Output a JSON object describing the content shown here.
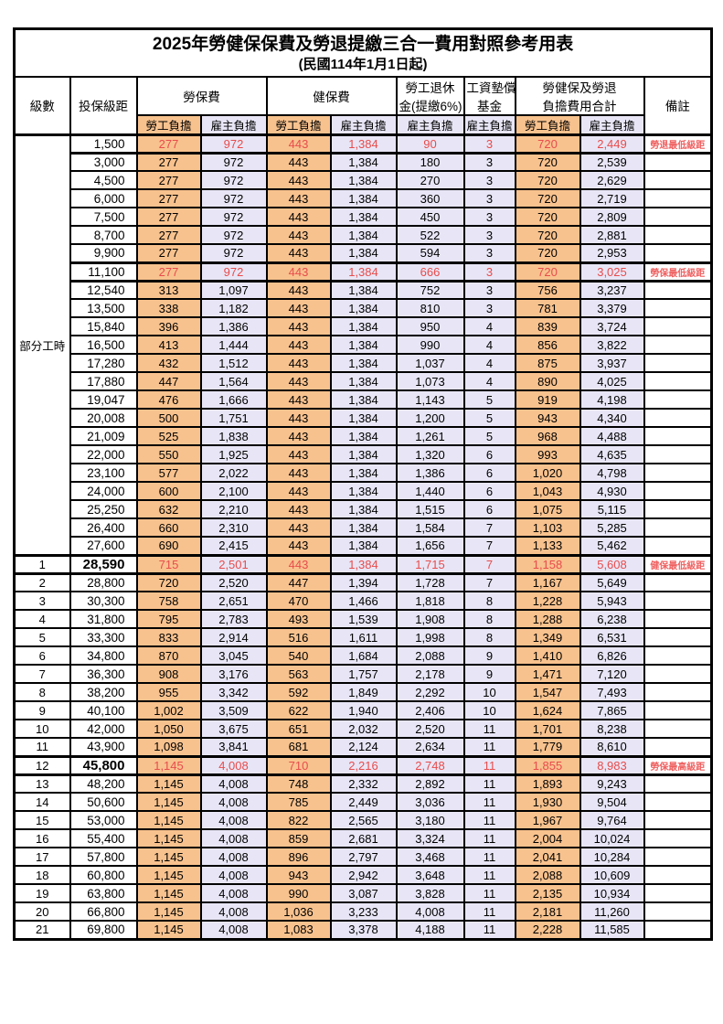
{
  "title": "2025年勞健保保費及勞退提繳三合一費用對照參考用表",
  "subtitle": "(民國114年1月1日起)",
  "colors": {
    "employee_col_bg": "#F8C28E",
    "employer_col_bg": "#E8E6F6",
    "highlight_text": "#E84C4C",
    "remark_text": "#EF6161",
    "border": "#000000",
    "page_bg": "#FFFFFF"
  },
  "table": {
    "header": {
      "level": "級數",
      "bracket": "投保級距",
      "labor_ins": "勞保費",
      "health_ins": "健保費",
      "pension_line1": "勞工退休",
      "pension_line2": "金(提繳6%)",
      "wage_fund_line1": "工資墊償",
      "wage_fund_line2": "基金",
      "total_line1": "勞健保及勞退",
      "total_line2": "負擔費用合計",
      "employee": "勞工負擔",
      "employer": "雇主負擔",
      "remark": "備註"
    },
    "part_time": {
      "label": "部分工時",
      "row_count": 23
    },
    "rows": [
      {
        "level": null,
        "bracket": "1,500",
        "values": [
          "277",
          "972",
          "443",
          "1,384",
          "90",
          "3",
          "720",
          "2,449"
        ],
        "remark": "勞退最低級距",
        "red": true,
        "bold": false
      },
      {
        "level": null,
        "bracket": "3,000",
        "values": [
          "277",
          "972",
          "443",
          "1,384",
          "180",
          "3",
          "720",
          "2,539"
        ],
        "remark": "",
        "red": false,
        "bold": false
      },
      {
        "level": null,
        "bracket": "4,500",
        "values": [
          "277",
          "972",
          "443",
          "1,384",
          "270",
          "3",
          "720",
          "2,629"
        ],
        "remark": "",
        "red": false,
        "bold": false
      },
      {
        "level": null,
        "bracket": "6,000",
        "values": [
          "277",
          "972",
          "443",
          "1,384",
          "360",
          "3",
          "720",
          "2,719"
        ],
        "remark": "",
        "red": false,
        "bold": false
      },
      {
        "level": null,
        "bracket": "7,500",
        "values": [
          "277",
          "972",
          "443",
          "1,384",
          "450",
          "3",
          "720",
          "2,809"
        ],
        "remark": "",
        "red": false,
        "bold": false
      },
      {
        "level": null,
        "bracket": "8,700",
        "values": [
          "277",
          "972",
          "443",
          "1,384",
          "522",
          "3",
          "720",
          "2,881"
        ],
        "remark": "",
        "red": false,
        "bold": false
      },
      {
        "level": null,
        "bracket": "9,900",
        "values": [
          "277",
          "972",
          "443",
          "1,384",
          "594",
          "3",
          "720",
          "2,953"
        ],
        "remark": "",
        "red": false,
        "bold": false
      },
      {
        "level": null,
        "bracket": "11,100",
        "values": [
          "277",
          "972",
          "443",
          "1,384",
          "666",
          "3",
          "720",
          "3,025"
        ],
        "remark": "勞保最低級距",
        "red": true,
        "bold": false
      },
      {
        "level": null,
        "bracket": "12,540",
        "values": [
          "313",
          "1,097",
          "443",
          "1,384",
          "752",
          "3",
          "756",
          "3,237"
        ],
        "remark": "",
        "red": false,
        "bold": false
      },
      {
        "level": null,
        "bracket": "13,500",
        "values": [
          "338",
          "1,182",
          "443",
          "1,384",
          "810",
          "3",
          "781",
          "3,379"
        ],
        "remark": "",
        "red": false,
        "bold": false
      },
      {
        "level": null,
        "bracket": "15,840",
        "values": [
          "396",
          "1,386",
          "443",
          "1,384",
          "950",
          "4",
          "839",
          "3,724"
        ],
        "remark": "",
        "red": false,
        "bold": false
      },
      {
        "level": null,
        "bracket": "16,500",
        "values": [
          "413",
          "1,444",
          "443",
          "1,384",
          "990",
          "4",
          "856",
          "3,822"
        ],
        "remark": "",
        "red": false,
        "bold": false
      },
      {
        "level": null,
        "bracket": "17,280",
        "values": [
          "432",
          "1,512",
          "443",
          "1,384",
          "1,037",
          "4",
          "875",
          "3,937"
        ],
        "remark": "",
        "red": false,
        "bold": false
      },
      {
        "level": null,
        "bracket": "17,880",
        "values": [
          "447",
          "1,564",
          "443",
          "1,384",
          "1,073",
          "4",
          "890",
          "4,025"
        ],
        "remark": "",
        "red": false,
        "bold": false
      },
      {
        "level": null,
        "bracket": "19,047",
        "values": [
          "476",
          "1,666",
          "443",
          "1,384",
          "1,143",
          "5",
          "919",
          "4,198"
        ],
        "remark": "",
        "red": false,
        "bold": false
      },
      {
        "level": null,
        "bracket": "20,008",
        "values": [
          "500",
          "1,751",
          "443",
          "1,384",
          "1,200",
          "5",
          "943",
          "4,340"
        ],
        "remark": "",
        "red": false,
        "bold": false
      },
      {
        "level": null,
        "bracket": "21,009",
        "values": [
          "525",
          "1,838",
          "443",
          "1,384",
          "1,261",
          "5",
          "968",
          "4,488"
        ],
        "remark": "",
        "red": false,
        "bold": false
      },
      {
        "level": null,
        "bracket": "22,000",
        "values": [
          "550",
          "1,925",
          "443",
          "1,384",
          "1,320",
          "6",
          "993",
          "4,635"
        ],
        "remark": "",
        "red": false,
        "bold": false
      },
      {
        "level": null,
        "bracket": "23,100",
        "values": [
          "577",
          "2,022",
          "443",
          "1,384",
          "1,386",
          "6",
          "1,020",
          "4,798"
        ],
        "remark": "",
        "red": false,
        "bold": false
      },
      {
        "level": null,
        "bracket": "24,000",
        "values": [
          "600",
          "2,100",
          "443",
          "1,384",
          "1,440",
          "6",
          "1,043",
          "4,930"
        ],
        "remark": "",
        "red": false,
        "bold": false
      },
      {
        "level": null,
        "bracket": "25,250",
        "values": [
          "632",
          "2,210",
          "443",
          "1,384",
          "1,515",
          "6",
          "1,075",
          "5,115"
        ],
        "remark": "",
        "red": false,
        "bold": false
      },
      {
        "level": null,
        "bracket": "26,400",
        "values": [
          "660",
          "2,310",
          "443",
          "1,384",
          "1,584",
          "7",
          "1,103",
          "5,285"
        ],
        "remark": "",
        "red": false,
        "bold": false
      },
      {
        "level": null,
        "bracket": "27,600",
        "values": [
          "690",
          "2,415",
          "443",
          "1,384",
          "1,656",
          "7",
          "1,133",
          "5,462"
        ],
        "remark": "",
        "red": false,
        "bold": false
      },
      {
        "level": "1",
        "bracket": "28,590",
        "values": [
          "715",
          "2,501",
          "443",
          "1,384",
          "1,715",
          "7",
          "1,158",
          "5,608"
        ],
        "remark": "健保最低級距",
        "red": true,
        "bold": true
      },
      {
        "level": "2",
        "bracket": "28,800",
        "values": [
          "720",
          "2,520",
          "447",
          "1,394",
          "1,728",
          "7",
          "1,167",
          "5,649"
        ],
        "remark": "",
        "red": false,
        "bold": false
      },
      {
        "level": "3",
        "bracket": "30,300",
        "values": [
          "758",
          "2,651",
          "470",
          "1,466",
          "1,818",
          "8",
          "1,228",
          "5,943"
        ],
        "remark": "",
        "red": false,
        "bold": false
      },
      {
        "level": "4",
        "bracket": "31,800",
        "values": [
          "795",
          "2,783",
          "493",
          "1,539",
          "1,908",
          "8",
          "1,288",
          "6,238"
        ],
        "remark": "",
        "red": false,
        "bold": false
      },
      {
        "level": "5",
        "bracket": "33,300",
        "values": [
          "833",
          "2,914",
          "516",
          "1,611",
          "1,998",
          "8",
          "1,349",
          "6,531"
        ],
        "remark": "",
        "red": false,
        "bold": false
      },
      {
        "level": "6",
        "bracket": "34,800",
        "values": [
          "870",
          "3,045",
          "540",
          "1,684",
          "2,088",
          "9",
          "1,410",
          "6,826"
        ],
        "remark": "",
        "red": false,
        "bold": false
      },
      {
        "level": "7",
        "bracket": "36,300",
        "values": [
          "908",
          "3,176",
          "563",
          "1,757",
          "2,178",
          "9",
          "1,471",
          "7,120"
        ],
        "remark": "",
        "red": false,
        "bold": false
      },
      {
        "level": "8",
        "bracket": "38,200",
        "values": [
          "955",
          "3,342",
          "592",
          "1,849",
          "2,292",
          "10",
          "1,547",
          "7,493"
        ],
        "remark": "",
        "red": false,
        "bold": false
      },
      {
        "level": "9",
        "bracket": "40,100",
        "values": [
          "1,002",
          "3,509",
          "622",
          "1,940",
          "2,406",
          "10",
          "1,624",
          "7,865"
        ],
        "remark": "",
        "red": false,
        "bold": false
      },
      {
        "level": "10",
        "bracket": "42,000",
        "values": [
          "1,050",
          "3,675",
          "651",
          "2,032",
          "2,520",
          "11",
          "1,701",
          "8,238"
        ],
        "remark": "",
        "red": false,
        "bold": false
      },
      {
        "level": "11",
        "bracket": "43,900",
        "values": [
          "1,098",
          "3,841",
          "681",
          "2,124",
          "2,634",
          "11",
          "1,779",
          "8,610"
        ],
        "remark": "",
        "red": false,
        "bold": false
      },
      {
        "level": "12",
        "bracket": "45,800",
        "values": [
          "1,145",
          "4,008",
          "710",
          "2,216",
          "2,748",
          "11",
          "1,855",
          "8,983"
        ],
        "remark": "勞保最高級距",
        "red": true,
        "bold": true
      },
      {
        "level": "13",
        "bracket": "48,200",
        "values": [
          "1,145",
          "4,008",
          "748",
          "2,332",
          "2,892",
          "11",
          "1,893",
          "9,243"
        ],
        "remark": "",
        "red": false,
        "bold": false
      },
      {
        "level": "14",
        "bracket": "50,600",
        "values": [
          "1,145",
          "4,008",
          "785",
          "2,449",
          "3,036",
          "11",
          "1,930",
          "9,504"
        ],
        "remark": "",
        "red": false,
        "bold": false
      },
      {
        "level": "15",
        "bracket": "53,000",
        "values": [
          "1,145",
          "4,008",
          "822",
          "2,565",
          "3,180",
          "11",
          "1,967",
          "9,764"
        ],
        "remark": "",
        "red": false,
        "bold": false
      },
      {
        "level": "16",
        "bracket": "55,400",
        "values": [
          "1,145",
          "4,008",
          "859",
          "2,681",
          "3,324",
          "11",
          "2,004",
          "10,024"
        ],
        "remark": "",
        "red": false,
        "bold": false
      },
      {
        "level": "17",
        "bracket": "57,800",
        "values": [
          "1,145",
          "4,008",
          "896",
          "2,797",
          "3,468",
          "11",
          "2,041",
          "10,284"
        ],
        "remark": "",
        "red": false,
        "bold": false
      },
      {
        "level": "18",
        "bracket": "60,800",
        "values": [
          "1,145",
          "4,008",
          "943",
          "2,942",
          "3,648",
          "11",
          "2,088",
          "10,609"
        ],
        "remark": "",
        "red": false,
        "bold": false
      },
      {
        "level": "19",
        "bracket": "63,800",
        "values": [
          "1,145",
          "4,008",
          "990",
          "3,087",
          "3,828",
          "11",
          "2,135",
          "10,934"
        ],
        "remark": "",
        "red": false,
        "bold": false
      },
      {
        "level": "20",
        "bracket": "66,800",
        "values": [
          "1,145",
          "4,008",
          "1,036",
          "3,233",
          "4,008",
          "11",
          "2,181",
          "11,260"
        ],
        "remark": "",
        "red": false,
        "bold": false
      },
      {
        "level": "21",
        "bracket": "69,800",
        "values": [
          "1,145",
          "4,008",
          "1,083",
          "3,378",
          "4,188",
          "11",
          "2,228",
          "11,585"
        ],
        "remark": "",
        "red": false,
        "bold": false
      }
    ]
  }
}
